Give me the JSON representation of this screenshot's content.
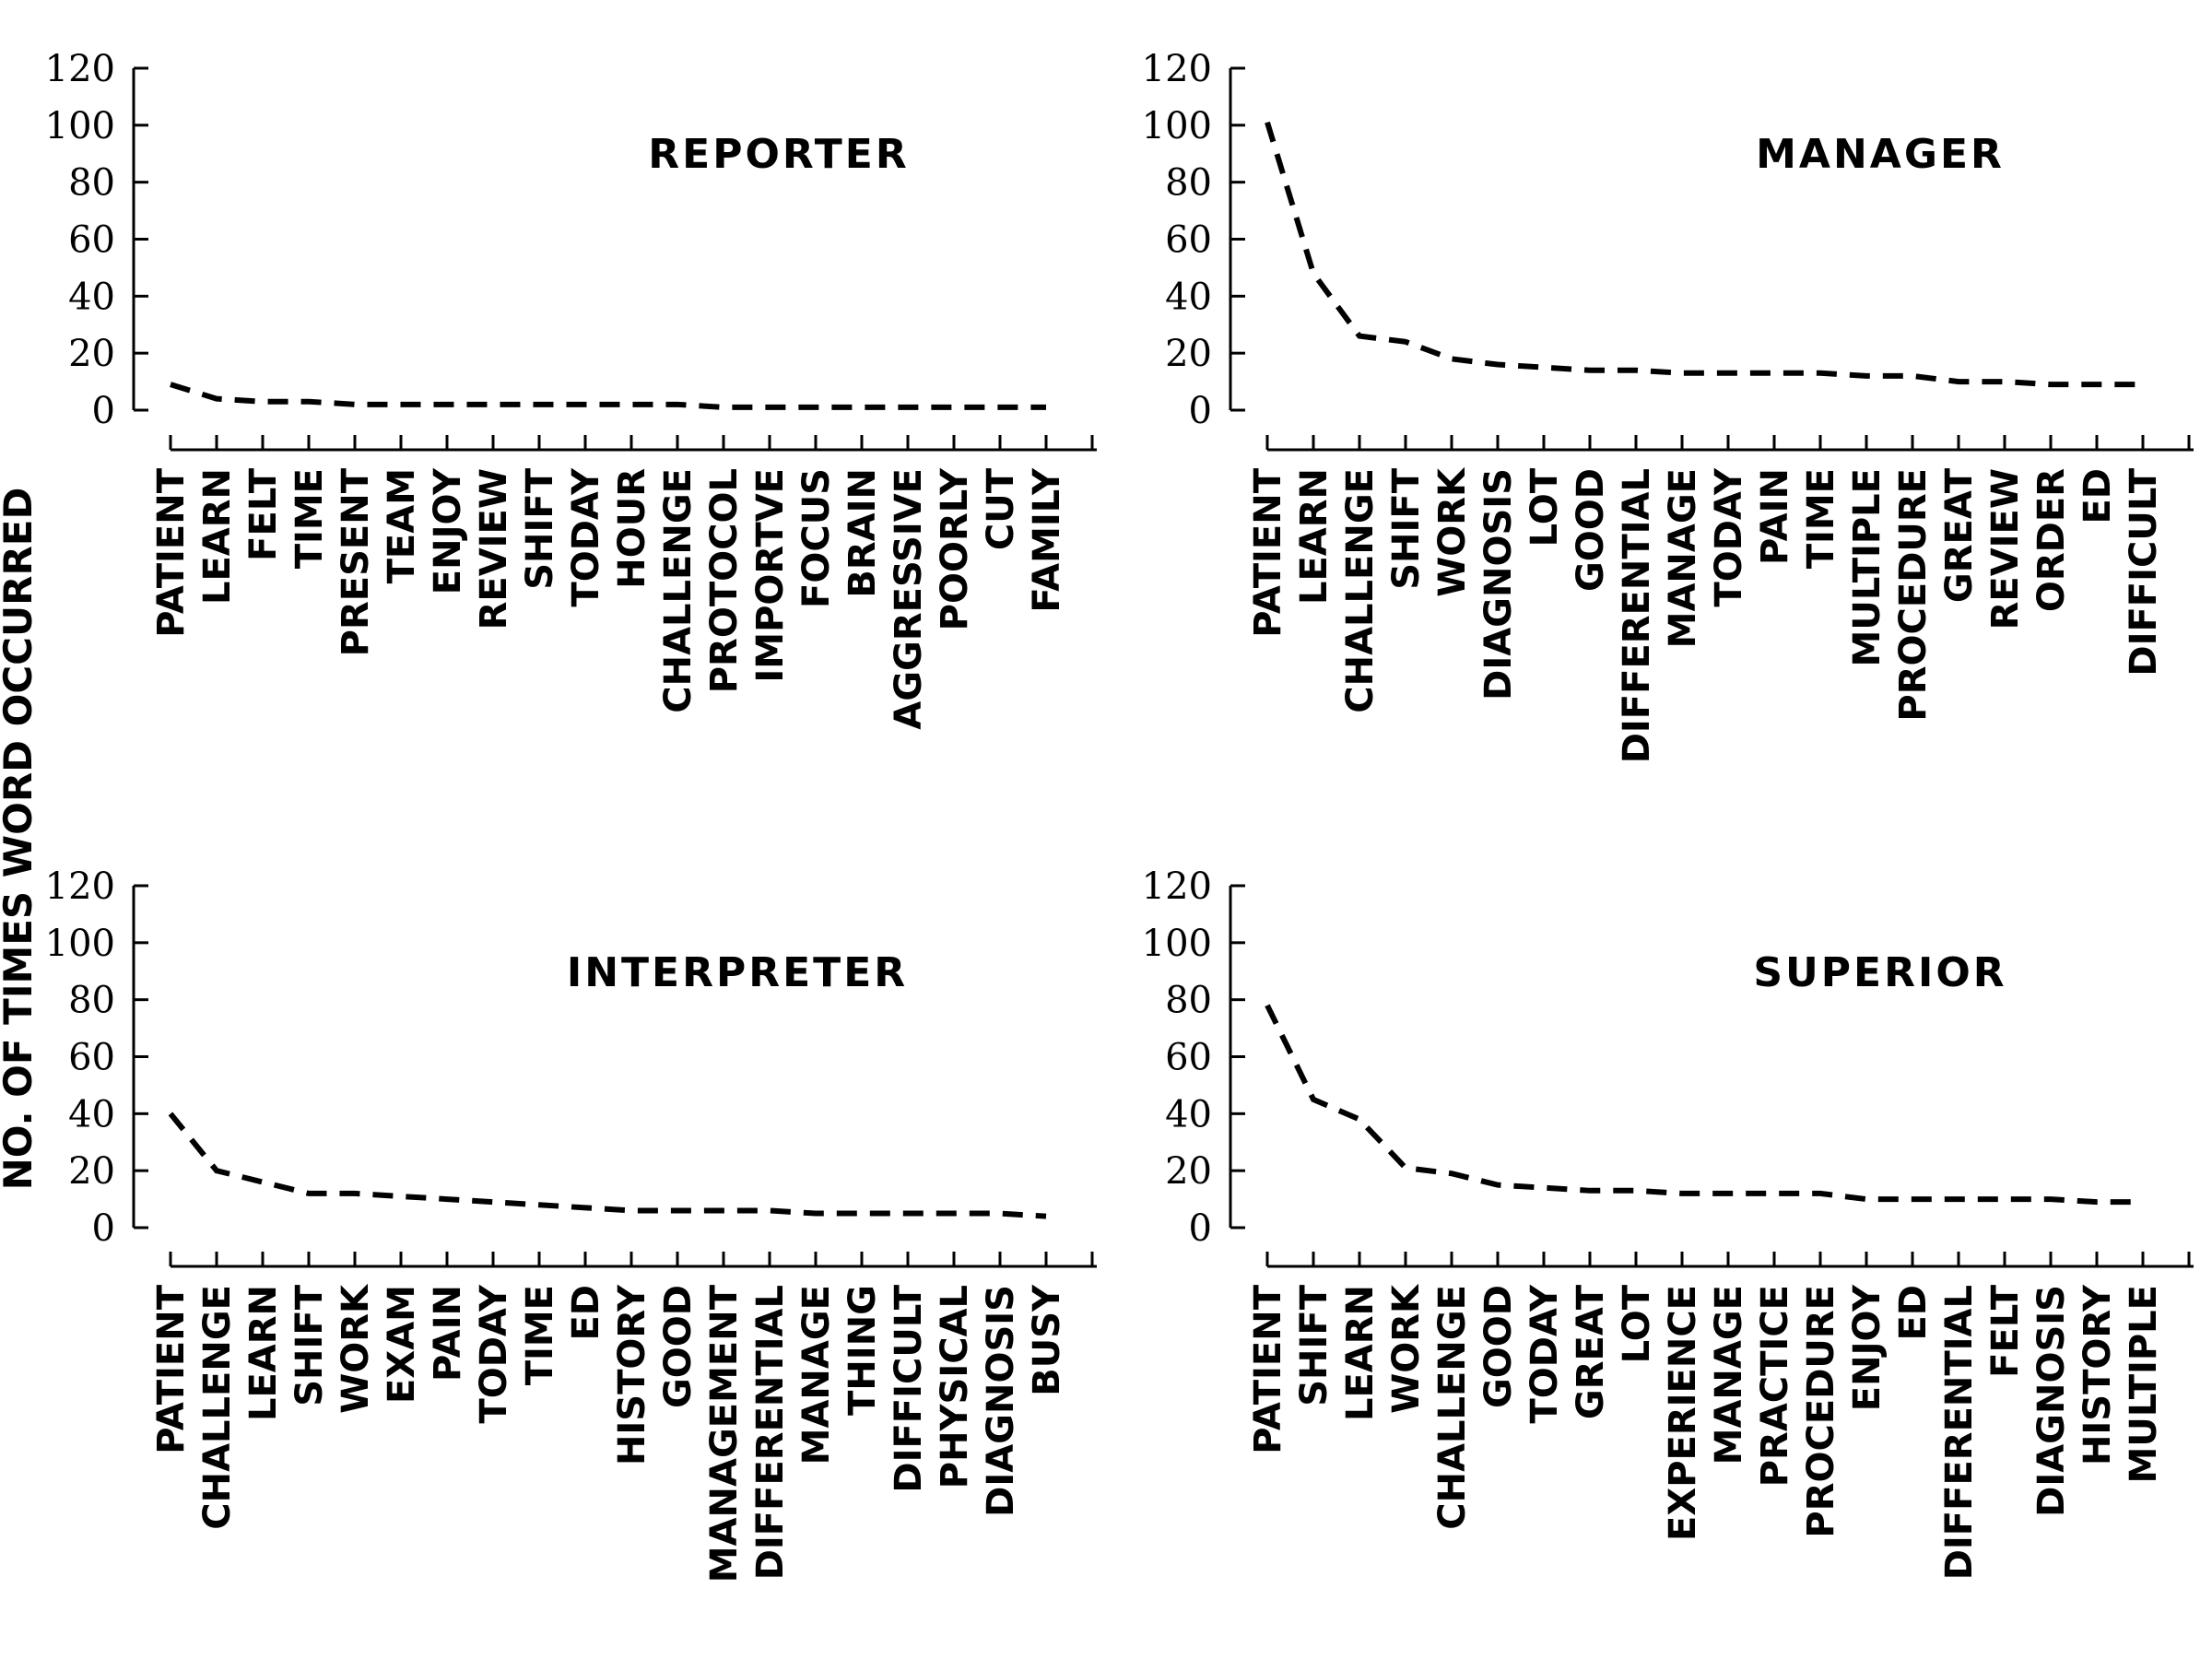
{
  "ylabel": "NO. OF TIMES WORD OCCURRED",
  "chart_data": [
    {
      "type": "line",
      "title": "REPORTER",
      "ylim": [
        0,
        120
      ],
      "yticks": [
        0,
        20,
        40,
        60,
        80,
        100,
        120
      ],
      "categories": [
        "PATIENT",
        "LEARN",
        "FELT",
        "TIME",
        "PRESENT",
        "TEAM",
        "ENJOY",
        "REVIEW",
        "SHIFT",
        "TODAY",
        "HOUR",
        "CHALLENGE",
        "PROTOCOL",
        "IMPORTVE",
        "FOCUS",
        "BRAIN",
        "AGGRESSIVE",
        "POORLY",
        "CUT",
        "FAMILY"
      ],
      "values": [
        9,
        4,
        3,
        3,
        2,
        2,
        2,
        2,
        2,
        2,
        2,
        2,
        1,
        1,
        1,
        1,
        1,
        1,
        1,
        1
      ]
    },
    {
      "type": "line",
      "title": "MANAGER",
      "ylim": [
        0,
        120
      ],
      "yticks": [
        0,
        20,
        40,
        60,
        80,
        100,
        120
      ],
      "categories": [
        "PATIENT",
        "LEARN",
        "CHALLENGE",
        "SHIFT",
        "WORK",
        "DIAGNOSIS",
        "LOT",
        "GOOD",
        "DIFFERENTIAL",
        "MANAGE",
        "TODAY",
        "PAIN",
        "TIME",
        "MULTIPLE",
        "PROCEDURE",
        "GREAT",
        "REVIEW",
        "ORDER",
        "ED",
        "DIFFICULT"
      ],
      "values": [
        101,
        48,
        26,
        24,
        18,
        16,
        15,
        14,
        14,
        13,
        13,
        13,
        13,
        12,
        12,
        10,
        10,
        9,
        9,
        9
      ]
    },
    {
      "type": "line",
      "title": "INTERPRETER",
      "ylim": [
        0,
        120
      ],
      "yticks": [
        0,
        20,
        40,
        60,
        80,
        100,
        120
      ],
      "categories": [
        "PATIENT",
        "CHALLENGE",
        "LEARN",
        "SHIFT",
        "WORK",
        "EXAM",
        "PAIN",
        "TODAY",
        "TIME",
        "ED",
        "HISTORY",
        "GOOD",
        "MANAGEMENT",
        "DIFFERENTIAL",
        "MANAGE",
        "THING",
        "DIFFICULT",
        "PHYSICAL",
        "DIAGNOSIS",
        "BUSY"
      ],
      "values": [
        40,
        20,
        16,
        12,
        12,
        11,
        10,
        9,
        8,
        7,
        6,
        6,
        6,
        6,
        5,
        5,
        5,
        5,
        5,
        4
      ]
    },
    {
      "type": "line",
      "title": "SUPERIOR",
      "ylim": [
        0,
        120
      ],
      "yticks": [
        0,
        20,
        40,
        60,
        80,
        100,
        120
      ],
      "categories": [
        "PATIENT",
        "SHIFT",
        "LEARN",
        "WORK",
        "CHALLENGE",
        "GOOD",
        "TODAY",
        "GREAT",
        "LOT",
        "EXPERIENCE",
        "MANAGE",
        "PRACTICE",
        "PROCEDURE",
        "ENJOY",
        "ED",
        "DIFFERENTIAL",
        "FELT",
        "DIAGNOSIS",
        "HISTORY",
        "MULTIPLE"
      ],
      "values": [
        78,
        45,
        38,
        21,
        19,
        15,
        14,
        13,
        13,
        12,
        12,
        12,
        12,
        10,
        10,
        10,
        10,
        10,
        9,
        9
      ]
    }
  ]
}
